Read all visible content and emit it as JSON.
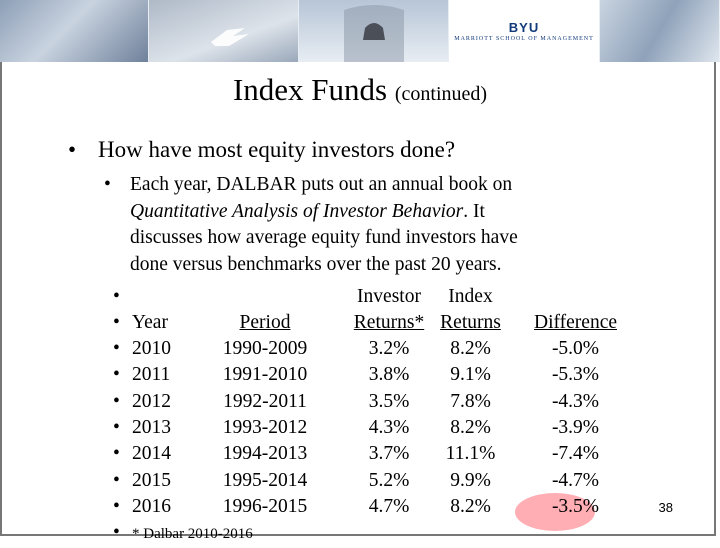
{
  "logo": {
    "name": "BYU",
    "subtitle": "MARRIOTT SCHOOL OF MANAGEMENT"
  },
  "title": {
    "main": "Index Funds",
    "sub": "(continued)"
  },
  "bullet": "How have most equity investors done?",
  "paragraph": {
    "lead": "Each year, DALBAR puts out an annual  book on ",
    "book": "Quantitative Analysis of Investor Behavior",
    "rest1": ".  It",
    "line3": "discusses how average equity fund investors have",
    "line4": "done versus benchmarks over the past 20 years."
  },
  "bullet_glyph": "•",
  "table": {
    "header_top": {
      "investor": "Investor",
      "index": "Index"
    },
    "headers": [
      "Year",
      "Period",
      "Returns*",
      "Returns",
      "Difference"
    ],
    "rows": [
      [
        "2010",
        "1990-2009",
        "3.2%",
        "8.2%",
        "-5.0%"
      ],
      [
        "2011",
        "1991-2010",
        "3.8%",
        "9.1%",
        "-5.3%"
      ],
      [
        "2012",
        "1992-2011",
        "3.5%",
        "7.8%",
        "-4.3%"
      ],
      [
        "2013",
        "1993-2012",
        "4.3%",
        "8.2%",
        "-3.9%"
      ],
      [
        "2014",
        "1994-2013",
        "3.7%",
        "11.1%",
        "-7.4%"
      ],
      [
        "2015",
        "1995-2014",
        "5.2%",
        "9.9%",
        "-4.7%"
      ],
      [
        "2016",
        "1996-2015",
        "4.7%",
        "8.2%",
        "-3.5%"
      ]
    ],
    "footnote": "* Dalbar 2010-2016"
  },
  "page_number": "38",
  "highlight_color": "#ff7882"
}
